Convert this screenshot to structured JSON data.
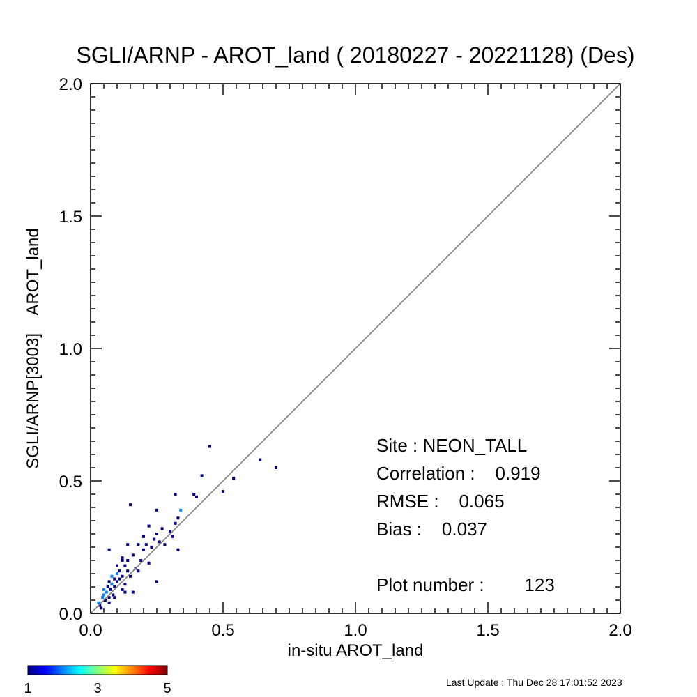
{
  "chart_data": {
    "type": "heatmap",
    "title": "SGLI/ARNP - AROT_land ( 20180227 - 20221128) (Des)",
    "xlabel": "in-situ AROT_land",
    "ylabel": "SGLI/ARNP[3003]    AROT_land",
    "xlim": [
      0,
      2
    ],
    "ylim": [
      0,
      2
    ],
    "x_ticks": [
      "0.0",
      "0.5",
      "1.0",
      "1.5",
      "2.0"
    ],
    "y_ticks": [
      "0.0",
      "0.5",
      "1.0",
      "1.5",
      "2.0"
    ],
    "one_to_one_line": true,
    "grid": false,
    "stats": {
      "site": "Site : NEON_TALL",
      "correlation": "Correlation :    0.919",
      "rmse": "RMSE :    0.065",
      "bias": "Bias :    0.037",
      "plot_number": "Plot number :        123"
    },
    "colorbar": {
      "min_label": "1",
      "mid_label": "3",
      "max_label": "5",
      "colors": [
        "#00007f",
        "#0000ff",
        "#00ffff",
        "#ffff00",
        "#ff0000",
        "#7f0000"
      ]
    },
    "cells": [
      [
        0.03,
        0.04,
        2
      ],
      [
        0.035,
        0.03,
        1
      ],
      [
        0.04,
        0.02,
        1
      ],
      [
        0.045,
        0.06,
        2
      ],
      [
        0.05,
        0.07,
        2
      ],
      [
        0.05,
        0.09,
        2
      ],
      [
        0.055,
        0.05,
        1
      ],
      [
        0.06,
        0.08,
        2
      ],
      [
        0.065,
        0.1,
        1
      ],
      [
        0.07,
        0.06,
        1
      ],
      [
        0.07,
        0.12,
        1
      ],
      [
        0.075,
        0.09,
        1
      ],
      [
        0.08,
        0.11,
        2
      ],
      [
        0.08,
        0.14,
        2
      ],
      [
        0.085,
        0.07,
        1
      ],
      [
        0.09,
        0.1,
        1
      ],
      [
        0.09,
        0.13,
        1
      ],
      [
        0.1,
        0.12,
        1
      ],
      [
        0.1,
        0.15,
        2
      ],
      [
        0.1,
        0.18,
        1
      ],
      [
        0.11,
        0.16,
        1
      ],
      [
        0.11,
        0.13,
        1
      ],
      [
        0.12,
        0.2,
        1
      ],
      [
        0.12,
        0.14,
        1
      ],
      [
        0.13,
        0.18,
        1
      ],
      [
        0.13,
        0.11,
        1
      ],
      [
        0.14,
        0.16,
        1
      ],
      [
        0.14,
        0.2,
        1
      ],
      [
        0.15,
        0.14,
        1
      ],
      [
        0.16,
        0.22,
        1
      ],
      [
        0.17,
        0.17,
        1
      ],
      [
        0.18,
        0.16,
        1
      ],
      [
        0.19,
        0.2,
        1
      ],
      [
        0.2,
        0.24,
        1
      ],
      [
        0.21,
        0.26,
        1
      ],
      [
        0.22,
        0.19,
        1
      ],
      [
        0.23,
        0.25,
        1
      ],
      [
        0.24,
        0.28,
        1
      ],
      [
        0.25,
        0.3,
        1
      ],
      [
        0.26,
        0.27,
        1
      ],
      [
        0.27,
        0.32,
        1
      ],
      [
        0.28,
        0.26,
        1
      ],
      [
        0.3,
        0.31,
        1
      ],
      [
        0.31,
        0.29,
        1
      ],
      [
        0.32,
        0.34,
        1
      ],
      [
        0.33,
        0.36,
        1
      ],
      [
        0.34,
        0.39,
        2
      ],
      [
        0.07,
        0.24,
        1
      ],
      [
        0.12,
        0.21,
        1
      ],
      [
        0.14,
        0.26,
        1
      ],
      [
        0.15,
        0.41,
        1
      ],
      [
        0.18,
        0.26,
        1
      ],
      [
        0.22,
        0.33,
        1
      ],
      [
        0.25,
        0.39,
        1
      ],
      [
        0.32,
        0.45,
        1
      ],
      [
        0.25,
        0.12,
        1
      ],
      [
        0.33,
        0.24,
        1
      ],
      [
        0.07,
        0.04,
        1
      ],
      [
        0.09,
        0.06,
        1
      ],
      [
        0.12,
        0.09,
        1
      ],
      [
        0.13,
        0.08,
        1
      ],
      [
        0.16,
        0.08,
        1
      ],
      [
        0.2,
        0.29,
        1
      ],
      [
        0.39,
        0.45,
        1
      ],
      [
        0.4,
        0.44,
        1
      ],
      [
        0.42,
        0.52,
        1
      ],
      [
        0.45,
        0.63,
        1
      ],
      [
        0.5,
        0.46,
        1
      ],
      [
        0.54,
        0.51,
        1
      ],
      [
        0.64,
        0.58,
        1
      ],
      [
        0.7,
        0.55,
        1
      ]
    ]
  },
  "footer": {
    "last_update": "Last Update : Thu Dec 28 17:01:52 2023"
  }
}
